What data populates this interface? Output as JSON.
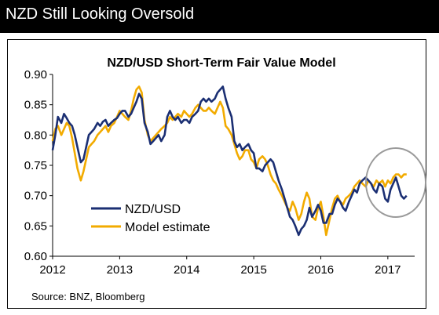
{
  "header": {
    "title": "NZD Still Looking Oversold"
  },
  "source": "Source: BNZ, Bloomberg",
  "colors": {
    "nzd_usd": "#1b2f73",
    "model": "#f2ab00",
    "circle": "#9a9a9a",
    "header_bg": "#000000"
  },
  "chart_data": {
    "type": "line",
    "title": "NZD/USD Short-Term Fair Value Model",
    "xlabel": "",
    "ylabel": "",
    "xlim": [
      2012.0,
      2017.4
    ],
    "ylim": [
      0.6,
      0.9
    ],
    "yticks": [
      "0.60",
      "0.65",
      "0.70",
      "0.75",
      "0.80",
      "0.85",
      "0.90"
    ],
    "xticks": [
      "2012",
      "2013",
      "2014",
      "2015",
      "2016",
      "2017"
    ],
    "grid": false,
    "legend": "bottom-left",
    "annotation": "circle around latest values (2017)",
    "series": [
      {
        "name": "NZD/USD",
        "points": [
          [
            2012.0,
            0.775
          ],
          [
            2012.04,
            0.8
          ],
          [
            2012.08,
            0.83
          ],
          [
            2012.13,
            0.82
          ],
          [
            2012.17,
            0.835
          ],
          [
            2012.21,
            0.828
          ],
          [
            2012.25,
            0.82
          ],
          [
            2012.29,
            0.815
          ],
          [
            2012.33,
            0.8
          ],
          [
            2012.37,
            0.78
          ],
          [
            2012.42,
            0.755
          ],
          [
            2012.46,
            0.76
          ],
          [
            2012.5,
            0.78
          ],
          [
            2012.54,
            0.8
          ],
          [
            2012.58,
            0.805
          ],
          [
            2012.62,
            0.81
          ],
          [
            2012.67,
            0.82
          ],
          [
            2012.71,
            0.815
          ],
          [
            2012.75,
            0.822
          ],
          [
            2012.79,
            0.825
          ],
          [
            2012.83,
            0.815
          ],
          [
            2012.87,
            0.82
          ],
          [
            2012.92,
            0.825
          ],
          [
            2012.96,
            0.828
          ],
          [
            2013.0,
            0.835
          ],
          [
            2013.04,
            0.84
          ],
          [
            2013.08,
            0.84
          ],
          [
            2013.13,
            0.83
          ],
          [
            2013.17,
            0.835
          ],
          [
            2013.21,
            0.845
          ],
          [
            2013.25,
            0.855
          ],
          [
            2013.29,
            0.868
          ],
          [
            2013.33,
            0.86
          ],
          [
            2013.37,
            0.82
          ],
          [
            2013.42,
            0.805
          ],
          [
            2013.46,
            0.785
          ],
          [
            2013.5,
            0.79
          ],
          [
            2013.54,
            0.795
          ],
          [
            2013.58,
            0.8
          ],
          [
            2013.62,
            0.79
          ],
          [
            2013.67,
            0.8
          ],
          [
            2013.71,
            0.83
          ],
          [
            2013.75,
            0.84
          ],
          [
            2013.79,
            0.83
          ],
          [
            2013.83,
            0.825
          ],
          [
            2013.87,
            0.83
          ],
          [
            2013.92,
            0.82
          ],
          [
            2013.96,
            0.825
          ],
          [
            2014.0,
            0.825
          ],
          [
            2014.04,
            0.82
          ],
          [
            2014.08,
            0.83
          ],
          [
            2014.13,
            0.835
          ],
          [
            2014.17,
            0.84
          ],
          [
            2014.21,
            0.855
          ],
          [
            2014.25,
            0.86
          ],
          [
            2014.29,
            0.855
          ],
          [
            2014.33,
            0.86
          ],
          [
            2014.37,
            0.855
          ],
          [
            2014.42,
            0.86
          ],
          [
            2014.46,
            0.87
          ],
          [
            2014.5,
            0.875
          ],
          [
            2014.54,
            0.88
          ],
          [
            2014.58,
            0.86
          ],
          [
            2014.62,
            0.845
          ],
          [
            2014.67,
            0.83
          ],
          [
            2014.71,
            0.79
          ],
          [
            2014.75,
            0.78
          ],
          [
            2014.79,
            0.785
          ],
          [
            2014.83,
            0.775
          ],
          [
            2014.87,
            0.78
          ],
          [
            2014.92,
            0.785
          ],
          [
            2014.96,
            0.775
          ],
          [
            2015.0,
            0.77
          ],
          [
            2015.04,
            0.745
          ],
          [
            2015.08,
            0.745
          ],
          [
            2015.13,
            0.74
          ],
          [
            2015.17,
            0.75
          ],
          [
            2015.21,
            0.755
          ],
          [
            2015.25,
            0.76
          ],
          [
            2015.29,
            0.755
          ],
          [
            2015.33,
            0.74
          ],
          [
            2015.37,
            0.725
          ],
          [
            2015.42,
            0.71
          ],
          [
            2015.46,
            0.695
          ],
          [
            2015.5,
            0.68
          ],
          [
            2015.54,
            0.665
          ],
          [
            2015.58,
            0.66
          ],
          [
            2015.62,
            0.65
          ],
          [
            2015.67,
            0.635
          ],
          [
            2015.71,
            0.645
          ],
          [
            2015.75,
            0.65
          ],
          [
            2015.79,
            0.66
          ],
          [
            2015.83,
            0.68
          ],
          [
            2015.87,
            0.665
          ],
          [
            2015.92,
            0.675
          ],
          [
            2015.96,
            0.685
          ],
          [
            2016.0,
            0.675
          ],
          [
            2016.04,
            0.655
          ],
          [
            2016.08,
            0.655
          ],
          [
            2016.13,
            0.67
          ],
          [
            2016.17,
            0.67
          ],
          [
            2016.21,
            0.685
          ],
          [
            2016.25,
            0.695
          ],
          [
            2016.29,
            0.69
          ],
          [
            2016.33,
            0.68
          ],
          [
            2016.37,
            0.675
          ],
          [
            2016.42,
            0.69
          ],
          [
            2016.46,
            0.7
          ],
          [
            2016.5,
            0.71
          ],
          [
            2016.54,
            0.705
          ],
          [
            2016.58,
            0.72
          ],
          [
            2016.62,
            0.725
          ],
          [
            2016.67,
            0.73
          ],
          [
            2016.71,
            0.725
          ],
          [
            2016.75,
            0.72
          ],
          [
            2016.79,
            0.71
          ],
          [
            2016.83,
            0.705
          ],
          [
            2016.87,
            0.72
          ],
          [
            2016.92,
            0.715
          ],
          [
            2016.96,
            0.695
          ],
          [
            2017.0,
            0.69
          ],
          [
            2017.04,
            0.71
          ],
          [
            2017.08,
            0.72
          ],
          [
            2017.12,
            0.73
          ],
          [
            2017.16,
            0.715
          ],
          [
            2017.2,
            0.7
          ],
          [
            2017.24,
            0.695
          ],
          [
            2017.28,
            0.7
          ]
        ]
      },
      {
        "name": "Model estimate",
        "points": [
          [
            2012.0,
            0.79
          ],
          [
            2012.04,
            0.81
          ],
          [
            2012.08,
            0.815
          ],
          [
            2012.13,
            0.8
          ],
          [
            2012.17,
            0.81
          ],
          [
            2012.21,
            0.82
          ],
          [
            2012.25,
            0.815
          ],
          [
            2012.29,
            0.795
          ],
          [
            2012.33,
            0.77
          ],
          [
            2012.37,
            0.745
          ],
          [
            2012.42,
            0.725
          ],
          [
            2012.46,
            0.74
          ],
          [
            2012.5,
            0.76
          ],
          [
            2012.54,
            0.78
          ],
          [
            2012.58,
            0.785
          ],
          [
            2012.62,
            0.79
          ],
          [
            2012.67,
            0.8
          ],
          [
            2012.71,
            0.805
          ],
          [
            2012.75,
            0.81
          ],
          [
            2012.79,
            0.815
          ],
          [
            2012.83,
            0.805
          ],
          [
            2012.87,
            0.815
          ],
          [
            2012.92,
            0.82
          ],
          [
            2012.96,
            0.83
          ],
          [
            2013.0,
            0.84
          ],
          [
            2013.04,
            0.835
          ],
          [
            2013.08,
            0.83
          ],
          [
            2013.13,
            0.825
          ],
          [
            2013.17,
            0.84
          ],
          [
            2013.21,
            0.86
          ],
          [
            2013.25,
            0.875
          ],
          [
            2013.29,
            0.88
          ],
          [
            2013.33,
            0.87
          ],
          [
            2013.37,
            0.825
          ],
          [
            2013.42,
            0.8
          ],
          [
            2013.46,
            0.79
          ],
          [
            2013.5,
            0.795
          ],
          [
            2013.54,
            0.8
          ],
          [
            2013.58,
            0.805
          ],
          [
            2013.62,
            0.81
          ],
          [
            2013.67,
            0.815
          ],
          [
            2013.71,
            0.82
          ],
          [
            2013.75,
            0.83
          ],
          [
            2013.79,
            0.825
          ],
          [
            2013.83,
            0.83
          ],
          [
            2013.87,
            0.835
          ],
          [
            2013.92,
            0.83
          ],
          [
            2013.96,
            0.84
          ],
          [
            2014.0,
            0.835
          ],
          [
            2014.04,
            0.83
          ],
          [
            2014.08,
            0.835
          ],
          [
            2014.13,
            0.845
          ],
          [
            2014.17,
            0.85
          ],
          [
            2014.21,
            0.845
          ],
          [
            2014.25,
            0.84
          ],
          [
            2014.29,
            0.84
          ],
          [
            2014.33,
            0.845
          ],
          [
            2014.37,
            0.84
          ],
          [
            2014.42,
            0.835
          ],
          [
            2014.46,
            0.845
          ],
          [
            2014.5,
            0.855
          ],
          [
            2014.54,
            0.845
          ],
          [
            2014.58,
            0.815
          ],
          [
            2014.62,
            0.81
          ],
          [
            2014.67,
            0.8
          ],
          [
            2014.71,
            0.785
          ],
          [
            2014.75,
            0.77
          ],
          [
            2014.79,
            0.76
          ],
          [
            2014.83,
            0.765
          ],
          [
            2014.87,
            0.775
          ],
          [
            2014.92,
            0.775
          ],
          [
            2014.96,
            0.76
          ],
          [
            2015.0,
            0.755
          ],
          [
            2015.04,
            0.745
          ],
          [
            2015.08,
            0.76
          ],
          [
            2015.13,
            0.765
          ],
          [
            2015.17,
            0.76
          ],
          [
            2015.21,
            0.75
          ],
          [
            2015.25,
            0.735
          ],
          [
            2015.29,
            0.725
          ],
          [
            2015.33,
            0.72
          ],
          [
            2015.37,
            0.71
          ],
          [
            2015.42,
            0.7
          ],
          [
            2015.46,
            0.69
          ],
          [
            2015.5,
            0.68
          ],
          [
            2015.54,
            0.675
          ],
          [
            2015.58,
            0.69
          ],
          [
            2015.62,
            0.68
          ],
          [
            2015.67,
            0.66
          ],
          [
            2015.71,
            0.67
          ],
          [
            2015.75,
            0.69
          ],
          [
            2015.79,
            0.705
          ],
          [
            2015.83,
            0.695
          ],
          [
            2015.87,
            0.665
          ],
          [
            2015.92,
            0.66
          ],
          [
            2015.96,
            0.68
          ],
          [
            2016.0,
            0.69
          ],
          [
            2016.04,
            0.665
          ],
          [
            2016.08,
            0.635
          ],
          [
            2016.13,
            0.66
          ],
          [
            2016.17,
            0.68
          ],
          [
            2016.21,
            0.695
          ],
          [
            2016.25,
            0.7
          ],
          [
            2016.29,
            0.69
          ],
          [
            2016.33,
            0.685
          ],
          [
            2016.37,
            0.695
          ],
          [
            2016.42,
            0.7
          ],
          [
            2016.46,
            0.705
          ],
          [
            2016.5,
            0.715
          ],
          [
            2016.54,
            0.72
          ],
          [
            2016.58,
            0.725
          ],
          [
            2016.62,
            0.72
          ],
          [
            2016.67,
            0.715
          ],
          [
            2016.71,
            0.725
          ],
          [
            2016.75,
            0.72
          ],
          [
            2016.79,
            0.715
          ],
          [
            2016.83,
            0.725
          ],
          [
            2016.87,
            0.72
          ],
          [
            2016.92,
            0.725
          ],
          [
            2016.96,
            0.715
          ],
          [
            2017.0,
            0.725
          ],
          [
            2017.04,
            0.72
          ],
          [
            2017.08,
            0.73
          ],
          [
            2017.12,
            0.735
          ],
          [
            2017.16,
            0.735
          ],
          [
            2017.2,
            0.73
          ],
          [
            2017.24,
            0.735
          ],
          [
            2017.28,
            0.735
          ]
        ]
      }
    ]
  }
}
